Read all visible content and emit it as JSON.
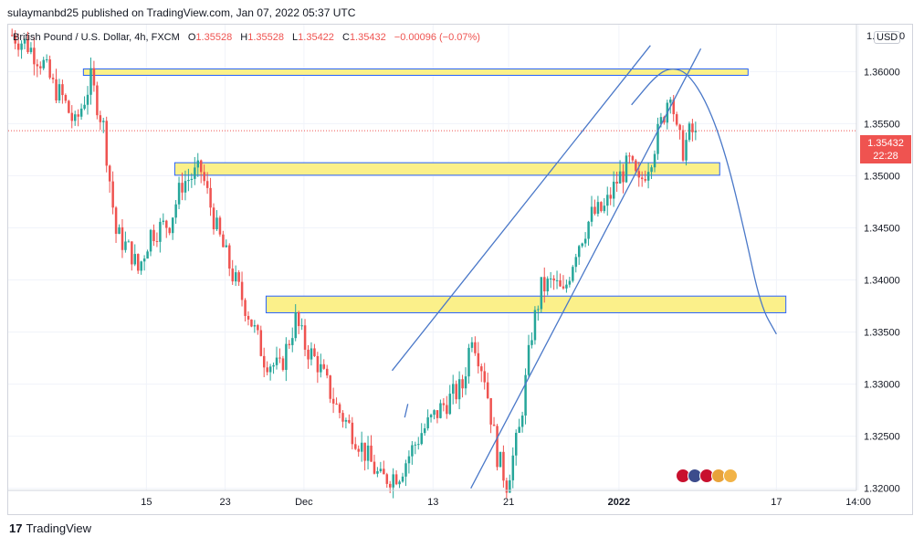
{
  "header": {
    "publisher_line": "sulaymanbd25 published on TradingView.com, Jan 07, 2022 05:37 UTC"
  },
  "legend": {
    "symbol": "British Pound / U.S. Dollar, 4h, FXCM",
    "o_label": "O",
    "o_value": "1.35528",
    "h_label": "H",
    "h_value": "1.35528",
    "l_label": "L",
    "l_value": "1.35422",
    "c_label": "C",
    "c_value": "1.35432",
    "change": "−0.00096 (−0.07%)"
  },
  "currency_badge": "USD",
  "price_axis_partial_top": "1.",
  "price_axis_partial_top_right": "0",
  "last_price": {
    "value": "1.35432",
    "countdown": "22:28"
  },
  "footer": {
    "brand": "TradingView",
    "brand_mark": "17"
  },
  "colors": {
    "up": "#26a69a",
    "down": "#ef5350",
    "zone_fill": "#fbf08a",
    "zone_border": "#2962ff",
    "trendline": "#4a78c8",
    "grid": "#f0f3fa",
    "price_line": "#ef5350"
  },
  "chart_data": {
    "type": "candlestick",
    "title": "British Pound / U.S. Dollar, 4h, FXCM",
    "xlabel": "",
    "ylabel": "",
    "ylim": [
      1.3198,
      1.3645
    ],
    "grid": true,
    "y_ticks": [
      "1.36000",
      "1.35500",
      "1.35000",
      "1.34500",
      "1.34000",
      "1.33500",
      "1.33000",
      "1.32500",
      "1.32000"
    ],
    "y_tick_values": [
      1.36,
      1.355,
      1.35,
      1.345,
      1.34,
      1.335,
      1.33,
      1.325,
      1.32
    ],
    "x_ticks": [
      "15",
      "23",
      "Dec",
      "13",
      "21",
      "2022",
      "17",
      "14:00"
    ],
    "x_tick_bars": [
      43,
      68,
      93,
      134,
      158,
      193,
      243,
      269
    ],
    "bar_count": 268,
    "last_price": 1.35432,
    "path_anchors": [
      [
        0,
        1.3635
      ],
      [
        5,
        1.3625
      ],
      [
        10,
        1.3607
      ],
      [
        13,
        1.3586
      ],
      [
        16,
        1.3575
      ],
      [
        20,
        1.3548
      ],
      [
        25,
        1.3592
      ],
      [
        29,
        1.3547
      ],
      [
        33,
        1.3445
      ],
      [
        38,
        1.3425
      ],
      [
        40,
        1.3409
      ],
      [
        44,
        1.3445
      ],
      [
        50,
        1.3455
      ],
      [
        54,
        1.3493
      ],
      [
        60,
        1.3505
      ],
      [
        65,
        1.3448
      ],
      [
        70,
        1.3405
      ],
      [
        75,
        1.3368
      ],
      [
        80,
        1.3325
      ],
      [
        85,
        1.3314
      ],
      [
        90,
        1.3362
      ],
      [
        93,
        1.3337
      ],
      [
        97,
        1.332
      ],
      [
        103,
        1.3278
      ],
      [
        110,
        1.3245
      ],
      [
        117,
        1.3208
      ],
      [
        123,
        1.3215
      ],
      [
        130,
        1.3254
      ],
      [
        137,
        1.328
      ],
      [
        143,
        1.3298
      ],
      [
        146,
        1.335
      ],
      [
        150,
        1.3308
      ],
      [
        154,
        1.3232
      ],
      [
        157,
        1.3205
      ],
      [
        161,
        1.3255
      ],
      [
        165,
        1.335
      ],
      [
        168,
        1.3392
      ],
      [
        172,
        1.3398
      ],
      [
        175,
        1.3385
      ],
      [
        179,
        1.343
      ],
      [
        184,
        1.3462
      ],
      [
        188,
        1.3468
      ],
      [
        192,
        1.3495
      ],
      [
        196,
        1.3512
      ],
      [
        199,
        1.349
      ],
      [
        203,
        1.352
      ],
      [
        207,
        1.356
      ],
      [
        209,
        1.3585
      ],
      [
        211,
        1.354
      ],
      [
        213,
        1.3525
      ],
      [
        215,
        1.354
      ],
      [
        217,
        1.3543
      ]
    ],
    "zones": [
      {
        "from_bar": 23,
        "to_bar": 234,
        "y_low": 1.35995,
        "y_high": 1.36025
      },
      {
        "from_bar": 52,
        "to_bar": 225,
        "y_low": 1.35005,
        "y_high": 1.35125
      },
      {
        "from_bar": 81,
        "to_bar": 246,
        "y_low": 1.33685,
        "y_high": 1.33845
      }
    ],
    "trendlines": [
      {
        "from": [
          121,
          1.3313
        ],
        "to": [
          203,
          1.3625
        ]
      },
      {
        "from": [
          146,
          1.32
        ],
        "to": [
          219,
          1.3622
        ]
      },
      {
        "from": [
          125,
          1.3268
        ],
        "to": [
          126,
          1.3281
        ]
      }
    ],
    "projection_curve": [
      [
        197,
        1.3568
      ],
      [
        205,
        1.3597
      ],
      [
        210,
        1.3604
      ],
      [
        215,
        1.3598
      ],
      [
        221,
        1.357
      ],
      [
        227,
        1.352
      ],
      [
        233,
        1.3445
      ],
      [
        238,
        1.3375
      ],
      [
        243,
        1.3348
      ]
    ]
  }
}
